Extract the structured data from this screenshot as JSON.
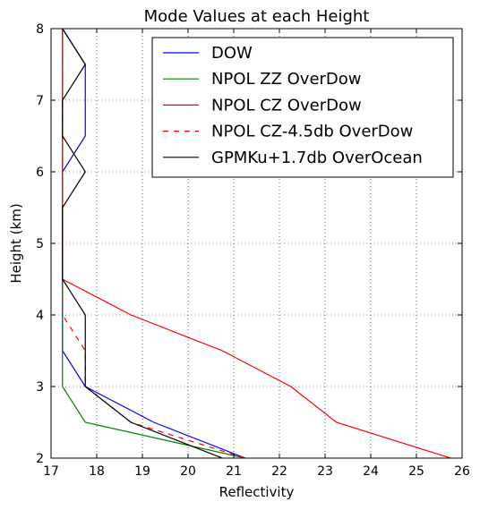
{
  "chart_data": {
    "type": "line",
    "title": "Mode Values at each Height",
    "xlabel": "Reflectivity",
    "ylabel": "Height (km)",
    "xlim": [
      17,
      26
    ],
    "ylim": [
      2,
      8
    ],
    "xticks": [
      17,
      18,
      19,
      20,
      21,
      22,
      23,
      24,
      25,
      26
    ],
    "yticks": [
      2,
      3,
      4,
      5,
      6,
      7,
      8
    ],
    "grid": true,
    "legend_position": "top-right",
    "series": [
      {
        "name": "DOW",
        "color": "#0000ff",
        "dash": "solid",
        "points": [
          [
            21.25,
            2.0
          ],
          [
            19.25,
            2.5
          ],
          [
            17.75,
            3.0
          ],
          [
            17.25,
            3.5
          ],
          [
            17.25,
            4.0
          ],
          [
            17.25,
            4.5
          ],
          [
            17.25,
            5.0
          ],
          [
            17.25,
            5.5
          ],
          [
            17.25,
            6.0
          ],
          [
            17.75,
            6.5
          ],
          [
            17.75,
            7.0
          ],
          [
            17.75,
            7.5
          ],
          [
            17.25,
            8.0
          ]
        ]
      },
      {
        "name": "NPOL ZZ OverDow",
        "color": "#008000",
        "dash": "solid",
        "points": [
          [
            21.25,
            2.0
          ],
          [
            17.75,
            2.5
          ],
          [
            17.25,
            3.0
          ],
          [
            17.25,
            3.5
          ],
          [
            17.25,
            4.0
          ],
          [
            17.25,
            4.5
          ],
          [
            17.25,
            5.0
          ],
          [
            17.25,
            5.5
          ],
          [
            17.25,
            6.0
          ],
          [
            17.25,
            6.5
          ],
          [
            17.25,
            7.0
          ],
          [
            17.25,
            7.5
          ],
          [
            17.25,
            8.0
          ]
        ]
      },
      {
        "name": "NPOL CZ OverDow",
        "color": "#ff0000",
        "dash": "solid",
        "points": [
          [
            25.75,
            2.0
          ],
          [
            23.25,
            2.5
          ],
          [
            22.25,
            3.0
          ],
          [
            20.75,
            3.5
          ],
          [
            18.75,
            4.0
          ],
          [
            17.25,
            4.5
          ],
          [
            17.25,
            5.0
          ],
          [
            17.25,
            5.5
          ],
          [
            17.25,
            6.0
          ],
          [
            17.25,
            6.5
          ],
          [
            17.25,
            7.0
          ],
          [
            17.25,
            7.5
          ],
          [
            17.25,
            8.0
          ]
        ]
      },
      {
        "name": "NPOL CZ-4.5db OverDow",
        "color": "#ff0000",
        "dash": "dashed",
        "points": [
          [
            21.25,
            2.0
          ],
          [
            18.75,
            2.5
          ],
          [
            17.75,
            3.0
          ],
          [
            17.75,
            3.5
          ],
          [
            17.25,
            4.0
          ],
          [
            17.25,
            4.5
          ],
          [
            17.25,
            5.0
          ],
          [
            17.25,
            5.5
          ],
          [
            17.25,
            6.0
          ],
          [
            17.25,
            6.5
          ],
          [
            17.25,
            7.0
          ],
          [
            17.25,
            7.5
          ],
          [
            17.25,
            8.0
          ]
        ]
      },
      {
        "name": "GPMKu+1.7db OverOcean",
        "color": "#000000",
        "dash": "solid",
        "points": [
          [
            20.75,
            2.0
          ],
          [
            18.75,
            2.5
          ],
          [
            17.75,
            3.0
          ],
          [
            17.75,
            3.5
          ],
          [
            17.75,
            4.0
          ],
          [
            17.25,
            4.5
          ],
          [
            17.25,
            5.0
          ],
          [
            17.25,
            5.5
          ],
          [
            17.75,
            6.0
          ],
          [
            17.25,
            6.5
          ],
          [
            17.25,
            7.0
          ],
          [
            17.75,
            7.5
          ],
          [
            17.25,
            8.0
          ]
        ]
      }
    ]
  }
}
